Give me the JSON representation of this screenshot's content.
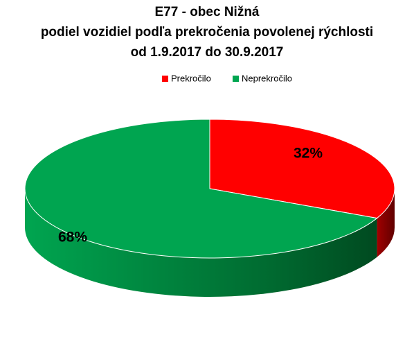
{
  "chart_data": {
    "type": "pie3d",
    "title": [
      "E77 - obec Nižná",
      "podiel vozidiel podľa prekročenia povolenej rýchlosti",
      "od 1.9.2017 do 30.9.2017"
    ],
    "categories": [
      "Prekročilo",
      "Neprekročilo"
    ],
    "values": [
      32,
      68
    ],
    "value_labels": [
      "32%",
      "68%"
    ],
    "colors": [
      "#ff0000",
      "#00a550"
    ],
    "legend": "top"
  }
}
